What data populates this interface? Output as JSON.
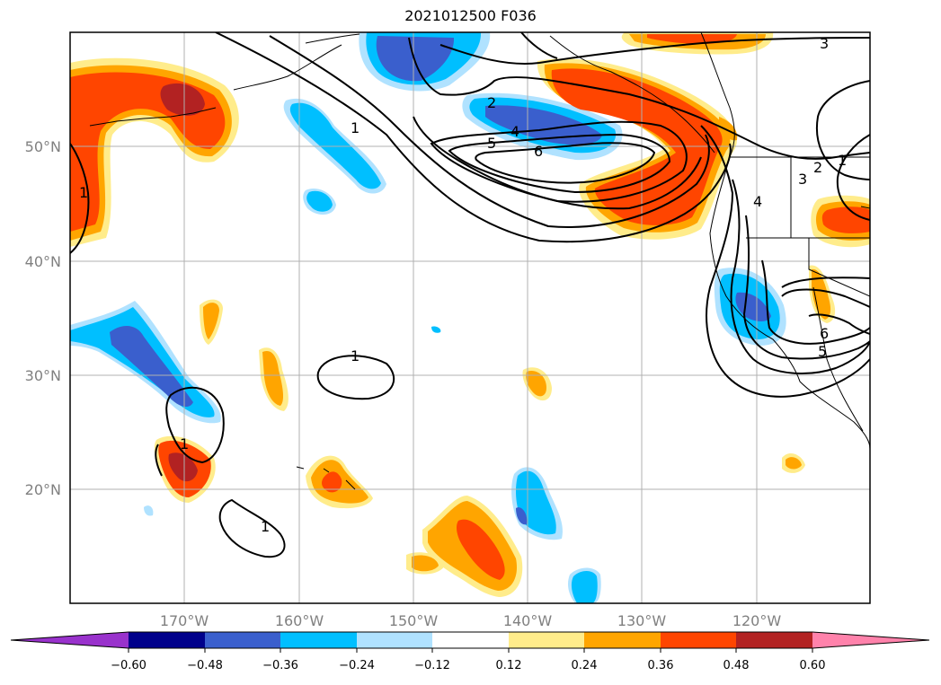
{
  "title": "2021012500 F036",
  "map": {
    "lat_labels": [
      "50°N",
      "40°N",
      "30°N",
      "20°N"
    ],
    "lon_labels": [
      "170°W",
      "160°W",
      "150°W",
      "140°W",
      "130°W",
      "120°W"
    ],
    "contour_labels": [
      "3",
      "1",
      "2",
      "4",
      "5",
      "6",
      "1",
      "1",
      "1",
      "1",
      "2",
      "3",
      "4",
      "5",
      "6",
      "1"
    ]
  },
  "colorbar": {
    "ticks": [
      "−0.60",
      "−0.48",
      "−0.36",
      "−0.24",
      "−0.12",
      "0.12",
      "0.24",
      "0.36",
      "0.48",
      "0.60"
    ],
    "colors": [
      "#9932cc",
      "#00008b",
      "#3a5fcd",
      "#00bfff",
      "#b0e2ff",
      "#ffffff",
      "#ffec8b",
      "#ffa500",
      "#ff4500",
      "#b22222",
      "#ff82ab"
    ]
  }
}
